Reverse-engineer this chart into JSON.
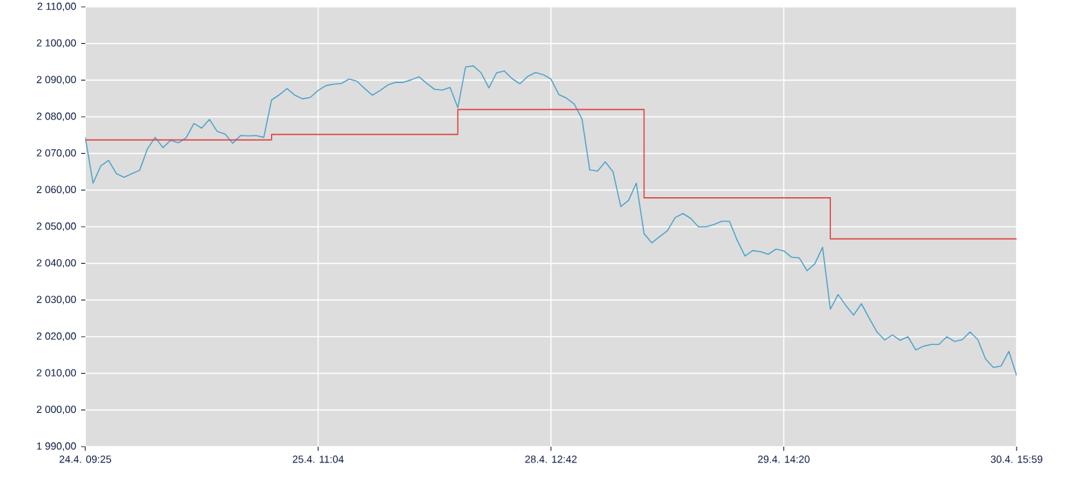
{
  "chart_data": {
    "type": "line",
    "grid": true,
    "ylim": [
      1990,
      2110
    ],
    "categories": [
      "24.4. 09:25",
      null,
      null,
      null,
      null,
      null,
      null,
      null,
      null,
      null,
      null,
      null,
      null,
      null,
      null,
      null,
      null,
      null,
      null,
      null,
      null,
      null,
      null,
      null,
      null,
      null,
      null,
      null,
      null,
      null,
      "25.4. 11:04",
      null,
      null,
      null,
      null,
      null,
      null,
      null,
      null,
      null,
      null,
      null,
      null,
      null,
      null,
      null,
      null,
      null,
      null,
      null,
      null,
      null,
      null,
      null,
      null,
      null,
      null,
      null,
      null,
      null,
      "28.4. 12:42",
      null,
      null,
      null,
      null,
      null,
      null,
      null,
      null,
      null,
      null,
      null,
      null,
      null,
      null,
      null,
      null,
      null,
      null,
      null,
      null,
      null,
      null,
      null,
      null,
      null,
      null,
      null,
      null,
      null,
      "29.4. 14:20",
      null,
      null,
      null,
      null,
      null,
      null,
      null,
      null,
      null,
      null,
      null,
      null,
      null,
      null,
      null,
      null,
      null,
      null,
      null,
      null,
      null,
      null,
      null,
      null,
      null,
      null,
      null,
      null,
      null,
      "30.4. 15:59"
    ],
    "yticks": [
      {
        "value": 1990,
        "label": "1 990,00"
      },
      {
        "value": 2000,
        "label": "2 000,00"
      },
      {
        "value": 2010,
        "label": "2 010,00"
      },
      {
        "value": 2020,
        "label": "2 020,00"
      },
      {
        "value": 2030,
        "label": "2 030,00"
      },
      {
        "value": 2040,
        "label": "2 040,00"
      },
      {
        "value": 2050,
        "label": "2 050,00"
      },
      {
        "value": 2060,
        "label": "2 060,00"
      },
      {
        "value": 2070,
        "label": "2 070,00"
      },
      {
        "value": 2080,
        "label": "2 080,00"
      },
      {
        "value": 2090,
        "label": "2 090,00"
      },
      {
        "value": 2100,
        "label": "2 100,00"
      },
      {
        "value": 2110,
        "label": "2 110,00"
      }
    ],
    "series": [
      {
        "type": "line",
        "color": "#4aa3cc",
        "values": [
          2074.4,
          2061.9,
          2066.6,
          2068.1,
          2064.5,
          2063.5,
          2064.5,
          2065.4,
          2071.2,
          2074.4,
          2071.6,
          2073.6,
          2072.9,
          2074.3,
          2078.2,
          2076.9,
          2079.3,
          2076.0,
          2075.3,
          2072.8,
          2074.9,
          2074.8,
          2074.9,
          2074.4,
          2084.6,
          2086.0,
          2087.7,
          2085.9,
          2084.9,
          2085.3,
          2087.2,
          2088.5,
          2088.9,
          2089.1,
          2090.3,
          2089.7,
          2087.7,
          2085.9,
          2087.2,
          2088.7,
          2089.4,
          2089.4,
          2090.1,
          2090.9,
          2089.1,
          2087.5,
          2087.3,
          2088.0,
          2082.5,
          2093.6,
          2093.9,
          2092.0,
          2087.9,
          2092.0,
          2092.5,
          2090.4,
          2089.0,
          2091.0,
          2092.1,
          2091.5,
          2090.3,
          2086.1,
          2085.1,
          2083.5,
          2079.4,
          2065.5,
          2065.2,
          2067.7,
          2065.0,
          2055.5,
          2057.2,
          2061.9,
          2048.1,
          2045.6,
          2047.3,
          2048.9,
          2052.5,
          2053.6,
          2052.3,
          2050.0,
          2050.0,
          2050.6,
          2051.5,
          2051.5,
          2046.3,
          2042.0,
          2043.5,
          2043.2,
          2042.5,
          2043.9,
          2043.4,
          2041.7,
          2041.5,
          2038.0,
          2039.9,
          2044.4,
          2027.5,
          2031.5,
          2028.5,
          2025.9,
          2029.0,
          2025.1,
          2021.3,
          2019.1,
          2020.5,
          2019.0,
          2020.0,
          2016.4,
          2017.4,
          2017.9,
          2017.9,
          2020.0,
          2018.7,
          2019.2,
          2021.3,
          2019.2,
          2013.9,
          2011.6,
          2012.0,
          2016.0,
          2009.4
        ]
      },
      {
        "type": "step",
        "color": "#e03c3c",
        "values": [
          2073.7,
          2073.7,
          2073.7,
          2073.7,
          2073.7,
          2073.7,
          2073.7,
          2073.7,
          2073.7,
          2073.7,
          2073.7,
          2073.7,
          2073.7,
          2073.7,
          2073.7,
          2073.7,
          2073.7,
          2073.7,
          2073.7,
          2073.7,
          2073.7,
          2073.7,
          2073.7,
          2073.7,
          2075.2,
          2075.2,
          2075.2,
          2075.2,
          2075.2,
          2075.2,
          2075.2,
          2075.2,
          2075.2,
          2075.2,
          2075.2,
          2075.2,
          2075.2,
          2075.2,
          2075.2,
          2075.2,
          2075.2,
          2075.2,
          2075.2,
          2075.2,
          2075.2,
          2075.2,
          2075.2,
          2075.2,
          2082.0,
          2082.0,
          2082.0,
          2082.0,
          2082.0,
          2082.0,
          2082.0,
          2082.0,
          2082.0,
          2082.0,
          2082.0,
          2082.0,
          2082.0,
          2082.0,
          2082.0,
          2082.0,
          2082.0,
          2082.0,
          2082.0,
          2082.0,
          2082.0,
          2082.0,
          2082.0,
          2082.0,
          2057.9,
          2057.9,
          2057.9,
          2057.9,
          2057.9,
          2057.9,
          2057.9,
          2057.9,
          2057.9,
          2057.9,
          2057.9,
          2057.9,
          2057.9,
          2057.9,
          2057.9,
          2057.9,
          2057.9,
          2057.9,
          2057.9,
          2057.9,
          2057.9,
          2057.9,
          2057.9,
          2057.9,
          2046.7,
          2046.7,
          2046.7,
          2046.7,
          2046.7,
          2046.7,
          2046.7,
          2046.7,
          2046.7,
          2046.7,
          2046.7,
          2046.7,
          2046.7,
          2046.7,
          2046.7,
          2046.7,
          2046.7,
          2046.7,
          2046.7,
          2046.7,
          2046.7,
          2046.7,
          2046.7,
          2046.7,
          2046.7
        ]
      }
    ]
  }
}
